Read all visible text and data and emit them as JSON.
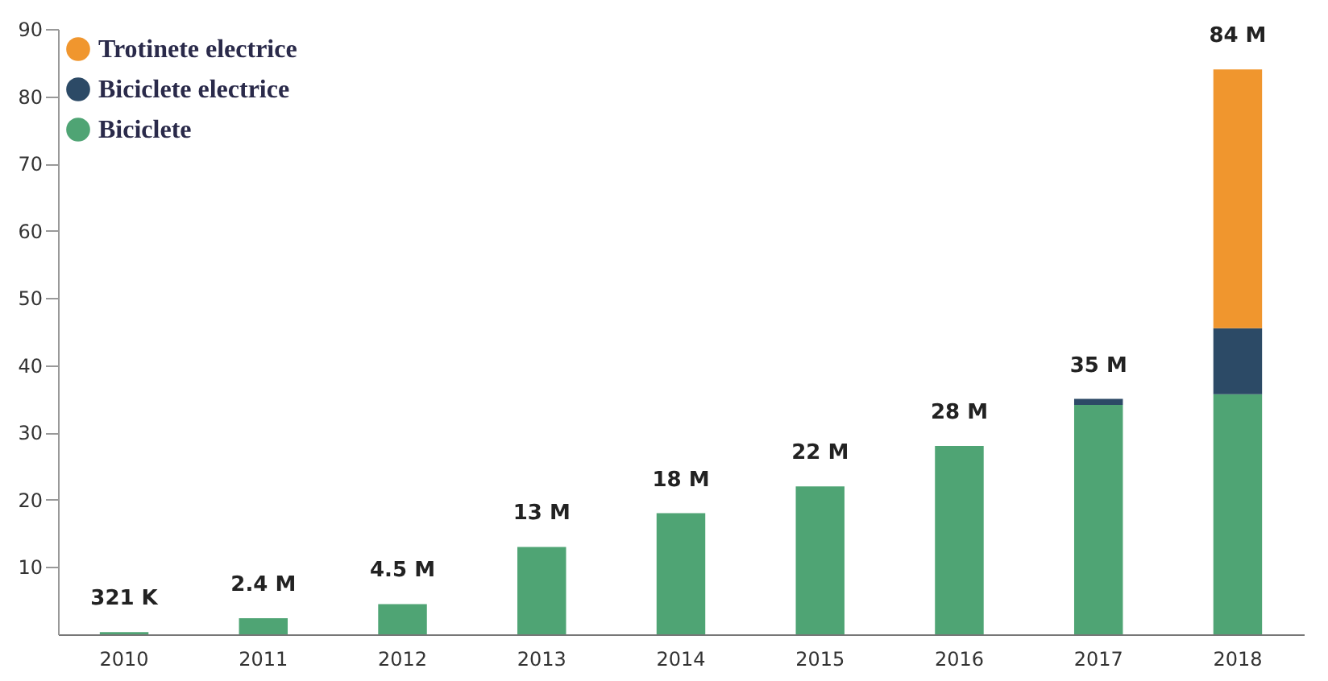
{
  "chart_data": {
    "type": "bar",
    "stacked": true,
    "categories": [
      "2010",
      "2011",
      "2012",
      "2013",
      "2014",
      "2015",
      "2016",
      "2017",
      "2018"
    ],
    "series": [
      {
        "name": "Biciclete",
        "color": "#4fa474",
        "values": [
          0.321,
          2.4,
          4.5,
          13,
          18,
          22,
          28,
          34.1,
          35.7
        ]
      },
      {
        "name": "Biciclete electrice",
        "color": "#2c4a66",
        "values": [
          null,
          null,
          null,
          null,
          null,
          null,
          null,
          0.9,
          9.8
        ]
      },
      {
        "name": "Trotinete electrice",
        "color": "#f0962e",
        "values": [
          null,
          null,
          null,
          null,
          null,
          null,
          null,
          null,
          38.5
        ]
      }
    ],
    "totals": [
      "321 K",
      "2.4 M",
      "4.5 M",
      "13 M",
      "18 M",
      "22 M",
      "28 M",
      "35 M",
      "84 M"
    ],
    "ylim": [
      0,
      90
    ],
    "yticks": [
      10,
      20,
      30,
      40,
      50,
      60,
      70,
      80,
      90
    ],
    "grid": false,
    "legend": "top left"
  }
}
